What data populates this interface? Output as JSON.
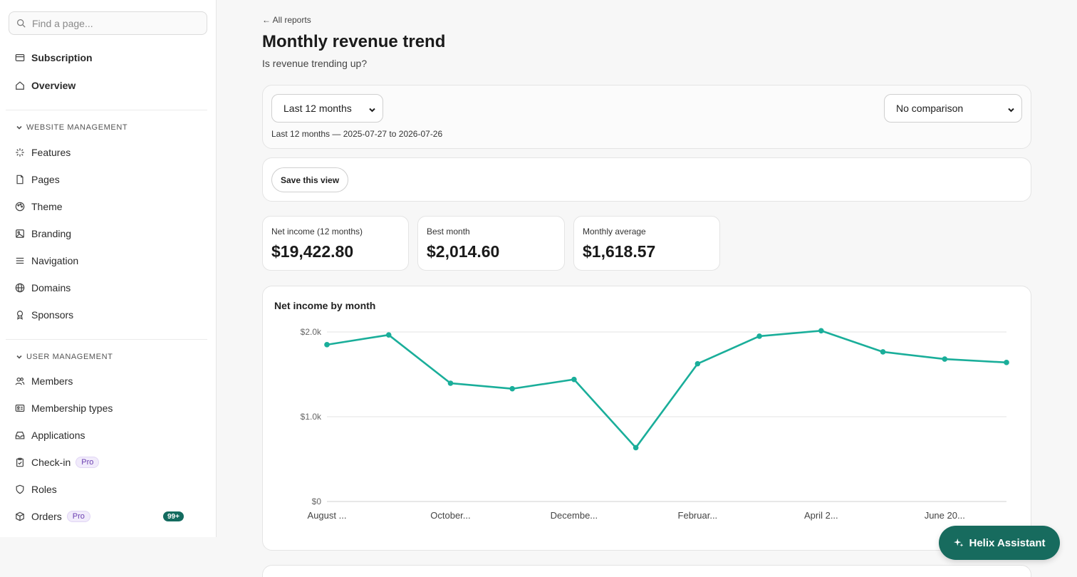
{
  "sidebar": {
    "search_placeholder": "Find a page...",
    "top_items": [
      {
        "label": "Subscription",
        "icon": "card-icon"
      },
      {
        "label": "Overview",
        "icon": "home-icon"
      }
    ],
    "website_section": {
      "title": "WEBSITE MANAGEMENT",
      "items": [
        {
          "label": "Features",
          "icon": "sparkle-burst-icon"
        },
        {
          "label": "Pages",
          "icon": "page-icon"
        },
        {
          "label": "Theme",
          "icon": "palette-icon"
        },
        {
          "label": "Branding",
          "icon": "image-icon"
        },
        {
          "label": "Navigation",
          "icon": "menu-icon"
        },
        {
          "label": "Domains",
          "icon": "globe-icon"
        },
        {
          "label": "Sponsors",
          "icon": "ribbon-icon"
        }
      ]
    },
    "user_section": {
      "title": "USER MANAGEMENT",
      "items": [
        {
          "label": "Members",
          "icon": "users-icon"
        },
        {
          "label": "Membership types",
          "icon": "id-card-icon"
        },
        {
          "label": "Applications",
          "icon": "inbox-icon"
        },
        {
          "label": "Check-in",
          "icon": "clipboard-check-icon",
          "tag": "Pro"
        },
        {
          "label": "Roles",
          "icon": "shield-icon"
        },
        {
          "label": "Orders",
          "icon": "box-icon",
          "tag": "Pro",
          "badge": "99+"
        }
      ]
    }
  },
  "header": {
    "back_link": "← All reports",
    "title": "Monthly revenue trend",
    "subtitle": "Is revenue trending up?"
  },
  "filters": {
    "period": "Last 12 months",
    "comparison": "No comparison",
    "range_note": "Last 12 months — 2025-07-27 to 2026-07-26"
  },
  "save_view_label": "Save this view",
  "stats": [
    {
      "label": "Net income (12 months)",
      "value": "$19,422.80"
    },
    {
      "label": "Best month",
      "value": "$2,014.60"
    },
    {
      "label": "Monthly average",
      "value": "$1,618.57"
    }
  ],
  "chart_title": "Net income by month",
  "chart_data": {
    "type": "line",
    "title": "Net income by month",
    "y_ticks": [
      "$0",
      "$1.0k",
      "$2.0k"
    ],
    "ylim": [
      0,
      2000
    ],
    "x_tick_labels": [
      "August ...",
      "October...",
      "Decembe...",
      "Februar...",
      "April 2...",
      "June 20..."
    ],
    "values": [
      1850,
      1965,
      1395,
      1330,
      1440,
      635,
      1625,
      1950,
      2014.6,
      1765,
      1680,
      1640
    ],
    "grid": true,
    "color": "#1aae9a"
  },
  "assistant_label": "Helix Assistant",
  "colors": {
    "accent": "#1aae9a",
    "brand": "#176b5e",
    "pro": "#6b3fb0"
  }
}
